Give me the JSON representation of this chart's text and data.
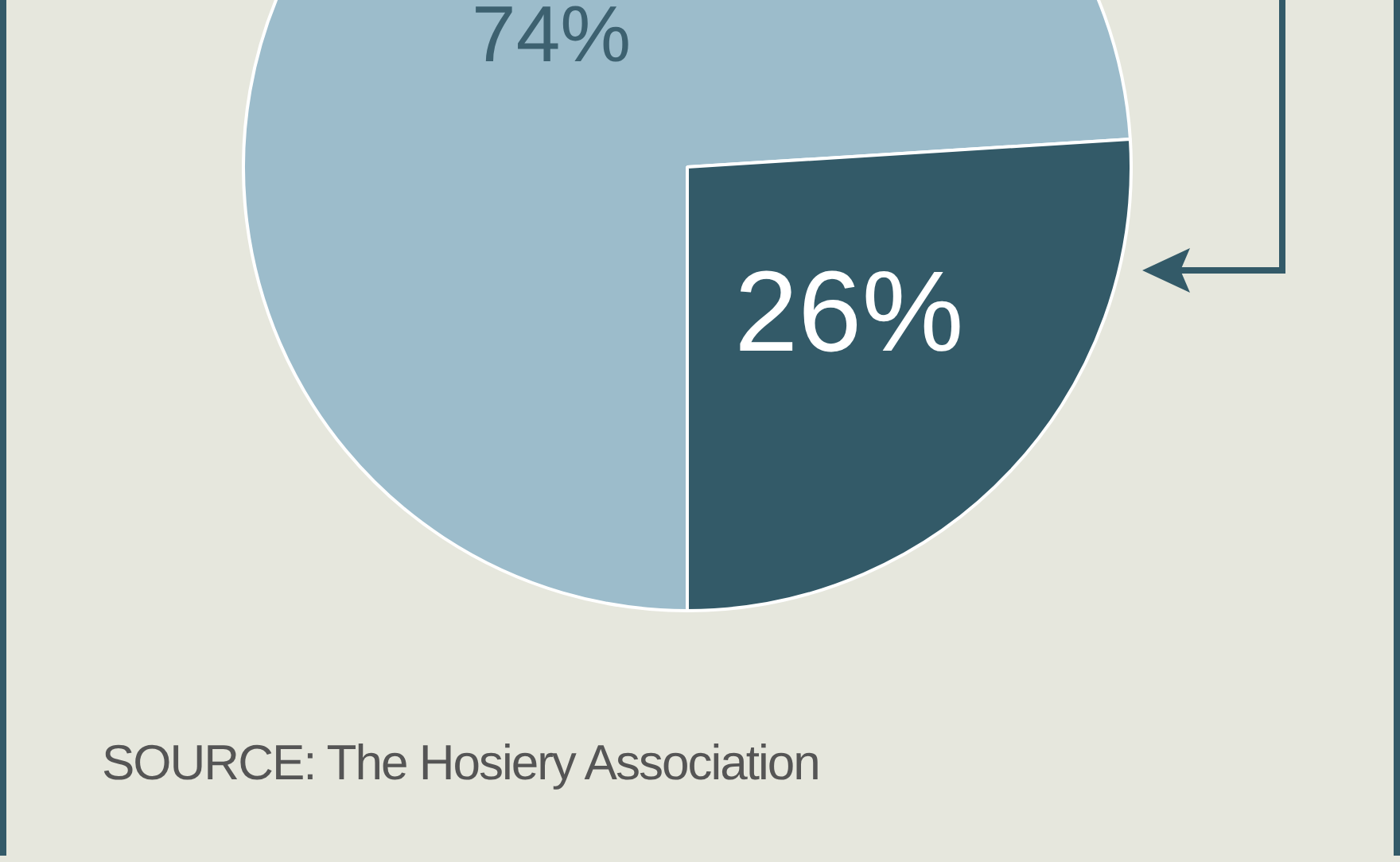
{
  "chart_data": {
    "type": "pie",
    "categories": [
      null,
      null
    ],
    "values": [
      74,
      26
    ],
    "colors": [
      "#9cbccb",
      "#335a68"
    ],
    "value_labels": [
      "74%",
      "26%"
    ],
    "legend": false,
    "annotations": [
      "SOURCE: The Hosiery Association"
    ]
  }
}
